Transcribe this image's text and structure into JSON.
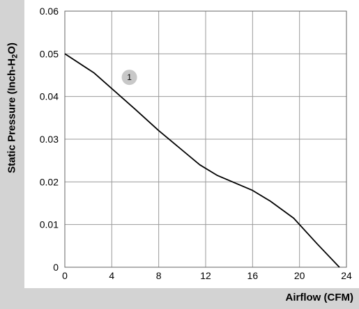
{
  "chart_data": {
    "type": "line",
    "title": "",
    "xlabel": "Airflow (CFM)",
    "ylabel": "Static Pressure (Inch-H2O)",
    "xlim": [
      0,
      24
    ],
    "ylim": [
      0,
      0.06
    ],
    "xticks": [
      0,
      4,
      8,
      12,
      16,
      20,
      24
    ],
    "xtick_labels": [
      "0",
      "4",
      "8",
      "12",
      "16",
      "20",
      "24"
    ],
    "yticks": [
      0,
      0.01,
      0.02,
      0.03,
      0.04,
      0.05,
      0.06
    ],
    "ytick_labels": [
      "0",
      "0.01",
      "0.02",
      "0.03",
      "0.04",
      "0.05",
      "0.06"
    ],
    "grid": true,
    "series": [
      {
        "name": "",
        "color": "#000000",
        "x": [
          0,
          2.5,
          6,
          8,
          11.5,
          13,
          16,
          17.5,
          19.5,
          21.5,
          23.4
        ],
        "y": [
          0.05,
          0.0455,
          0.037,
          0.032,
          0.024,
          0.0215,
          0.018,
          0.0155,
          0.0115,
          0.0055,
          0
        ]
      }
    ],
    "annotations": [
      {
        "text": "1",
        "x": 5.5,
        "y": 0.0445
      }
    ]
  }
}
